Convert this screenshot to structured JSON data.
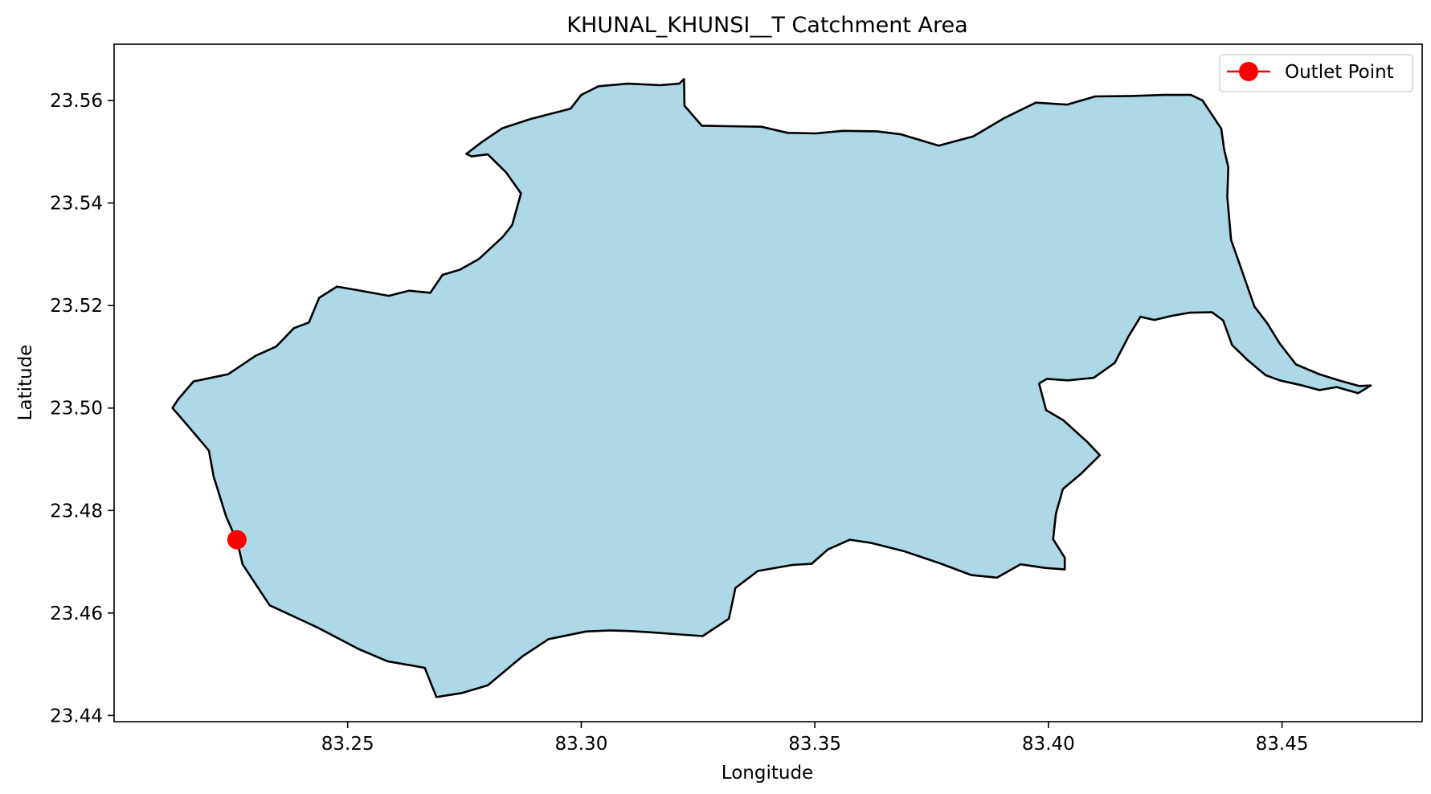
{
  "chart_data": {
    "type": "map",
    "title": "KHUNAL_KHUNSI__T Catchment Area",
    "xlabel": "Longitude",
    "ylabel": "Latitude",
    "xlim": [
      83.2,
      83.48
    ],
    "ylim": [
      23.4388,
      23.571
    ],
    "xticks": [
      {
        "value": 83.25,
        "label": "83.25"
      },
      {
        "value": 83.3,
        "label": "83.30"
      },
      {
        "value": 83.35,
        "label": "83.35"
      },
      {
        "value": 83.4,
        "label": "83.40"
      },
      {
        "value": 83.45,
        "label": "83.45"
      }
    ],
    "yticks": [
      {
        "value": 23.44,
        "label": "23.44"
      },
      {
        "value": 23.46,
        "label": "23.46"
      },
      {
        "value": 23.48,
        "label": "23.48"
      },
      {
        "value": 23.5,
        "label": "23.50"
      },
      {
        "value": 23.52,
        "label": "23.52"
      },
      {
        "value": 23.54,
        "label": "23.54"
      },
      {
        "value": 23.56,
        "label": "23.56"
      }
    ],
    "grid": false,
    "legend": {
      "position": "top-right",
      "entries": [
        {
          "label": "Outlet Point",
          "color": "#ff0000"
        }
      ]
    },
    "catchment": {
      "fill": "#add8e6",
      "edge": "#000000",
      "boundary": [
        [
          83.2137,
          23.5017
        ],
        [
          83.217,
          23.5052
        ],
        [
          83.2244,
          23.5066
        ],
        [
          83.2303,
          23.5102
        ],
        [
          83.2347,
          23.512
        ],
        [
          83.2385,
          23.5156
        ],
        [
          83.2417,
          23.5167
        ],
        [
          83.2439,
          23.5215
        ],
        [
          83.2477,
          23.5237
        ],
        [
          83.2522,
          23.523
        ],
        [
          83.2588,
          23.5219
        ],
        [
          83.2631,
          23.5229
        ],
        [
          83.2677,
          23.5225
        ],
        [
          83.2703,
          23.526
        ],
        [
          83.274,
          23.527
        ],
        [
          83.2781,
          23.5291
        ],
        [
          83.2832,
          23.5334
        ],
        [
          83.2852,
          23.5357
        ],
        [
          83.2871,
          23.5419
        ],
        [
          83.2839,
          23.546
        ],
        [
          83.28,
          23.5495
        ],
        [
          83.2765,
          23.5491
        ],
        [
          83.2754,
          23.5496
        ],
        [
          83.2787,
          23.5519
        ],
        [
          83.2831,
          23.5546
        ],
        [
          83.2891,
          23.5564
        ],
        [
          83.2977,
          23.5584
        ],
        [
          83.3,
          23.5611
        ],
        [
          83.3037,
          23.5628
        ],
        [
          83.31,
          23.5633
        ],
        [
          83.3169,
          23.563
        ],
        [
          83.321,
          23.5633
        ],
        [
          83.322,
          23.5642
        ],
        [
          83.3221,
          23.559
        ],
        [
          83.3258,
          23.5551
        ],
        [
          83.331,
          23.555
        ],
        [
          83.3385,
          23.5549
        ],
        [
          83.3442,
          23.5537
        ],
        [
          83.3502,
          23.5536
        ],
        [
          83.356,
          23.5541
        ],
        [
          83.3633,
          23.554
        ],
        [
          83.3685,
          23.5534
        ],
        [
          83.3765,
          23.5512
        ],
        [
          83.3839,
          23.553
        ],
        [
          83.3906,
          23.5566
        ],
        [
          83.3973,
          23.5596
        ],
        [
          83.404,
          23.5592
        ],
        [
          83.41,
          23.5608
        ],
        [
          83.418,
          23.5609
        ],
        [
          83.4247,
          23.5611
        ],
        [
          83.4305,
          23.5611
        ],
        [
          83.433,
          23.56
        ],
        [
          83.437,
          23.5545
        ],
        [
          83.4376,
          23.5505
        ],
        [
          83.4385,
          23.547
        ],
        [
          83.4383,
          23.5412
        ],
        [
          83.4391,
          23.5328
        ],
        [
          83.441,
          23.5279
        ],
        [
          83.4441,
          23.5198
        ],
        [
          83.4468,
          23.5166
        ],
        [
          83.4495,
          23.5126
        ],
        [
          83.453,
          23.5085
        ],
        [
          83.458,
          23.5066
        ],
        [
          83.4625,
          23.5053
        ],
        [
          83.4665,
          23.5043
        ],
        [
          83.469,
          23.5044
        ],
        [
          83.4663,
          23.5029
        ],
        [
          83.4617,
          23.5041
        ],
        [
          83.458,
          23.5035
        ],
        [
          83.4544,
          23.5044
        ],
        [
          83.4495,
          23.5054
        ],
        [
          83.4465,
          23.5064
        ],
        [
          83.4427,
          23.5093
        ],
        [
          83.4393,
          23.5123
        ],
        [
          83.4374,
          23.5171
        ],
        [
          83.435,
          23.5187
        ],
        [
          83.4302,
          23.5186
        ],
        [
          83.4264,
          23.518
        ],
        [
          83.4227,
          23.5172
        ],
        [
          83.4197,
          23.5178
        ],
        [
          83.4171,
          23.5139
        ],
        [
          83.4142,
          23.5088
        ],
        [
          83.4097,
          23.5059
        ],
        [
          83.4042,
          23.5054
        ],
        [
          83.3997,
          23.5057
        ],
        [
          83.398,
          23.5048
        ],
        [
          83.3995,
          23.4996
        ],
        [
          83.4032,
          23.4976
        ],
        [
          83.4083,
          23.4934
        ],
        [
          83.411,
          23.4908
        ],
        [
          83.407,
          23.4872
        ],
        [
          83.4031,
          23.4842
        ],
        [
          83.4016,
          23.4794
        ],
        [
          83.401,
          23.4744
        ],
        [
          83.4035,
          23.4708
        ],
        [
          83.4035,
          23.4685
        ],
        [
          83.3993,
          23.4688
        ],
        [
          83.394,
          23.4695
        ],
        [
          83.389,
          23.4669
        ],
        [
          83.3835,
          23.4674
        ],
        [
          83.3768,
          23.4697
        ],
        [
          83.369,
          23.4721
        ],
        [
          83.362,
          23.4737
        ],
        [
          83.3575,
          23.4743
        ],
        [
          83.3528,
          23.4724
        ],
        [
          83.3493,
          23.4696
        ],
        [
          83.3453,
          23.4694
        ],
        [
          83.3378,
          23.4682
        ],
        [
          83.333,
          23.4649
        ],
        [
          83.3316,
          23.4589
        ],
        [
          83.326,
          23.4555
        ],
        [
          83.32,
          23.4559
        ],
        [
          83.314,
          23.4563
        ],
        [
          83.3098,
          23.4565
        ],
        [
          83.306,
          23.4566
        ],
        [
          83.301,
          23.4564
        ],
        [
          83.293,
          23.4549
        ],
        [
          83.2875,
          23.4516
        ],
        [
          83.28,
          23.4459
        ],
        [
          83.2745,
          23.4444
        ],
        [
          83.269,
          23.4436
        ],
        [
          83.2665,
          23.4493
        ],
        [
          83.2585,
          23.4506
        ],
        [
          83.2523,
          23.453
        ],
        [
          83.2435,
          23.4572
        ],
        [
          83.2333,
          23.4615
        ],
        [
          83.2275,
          23.4695
        ],
        [
          83.2264,
          23.4738
        ],
        [
          83.224,
          23.4788
        ],
        [
          83.2213,
          23.4867
        ],
        [
          83.2203,
          23.4917
        ],
        [
          83.2163,
          23.496
        ],
        [
          83.2125,
          23.5
        ]
      ]
    },
    "outlet_point": {
      "lon": 83.2263,
      "lat": 23.4743,
      "color": "#ff0000"
    }
  }
}
